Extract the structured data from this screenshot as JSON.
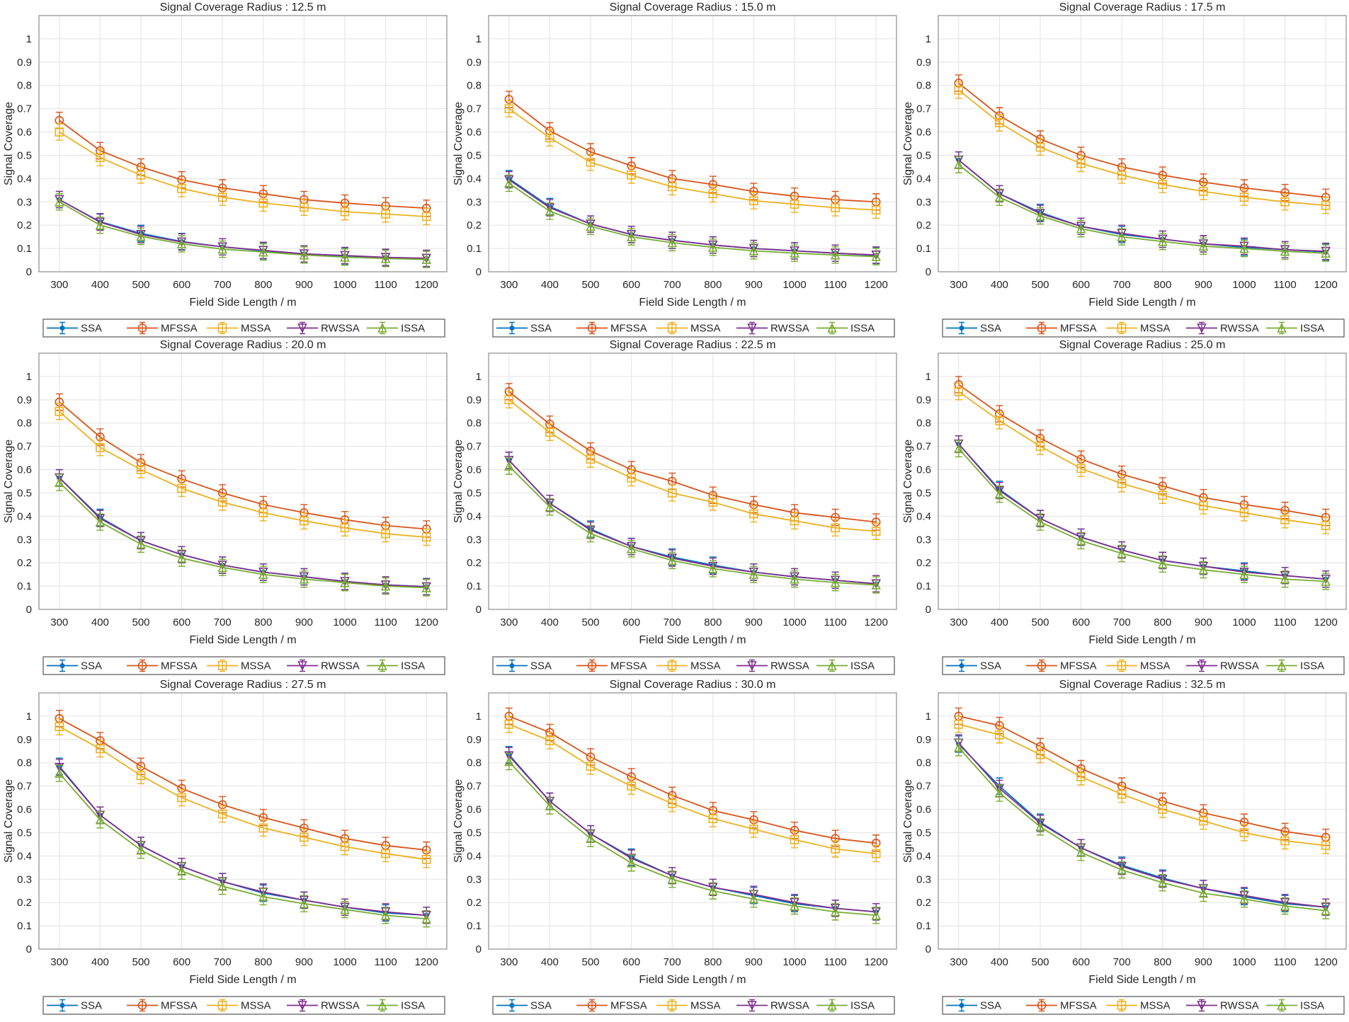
{
  "colors": {
    "SSA": "#0072BD",
    "MFSSA": "#D95319",
    "MSSA": "#EDB120",
    "RWSSA": "#7E2F8E",
    "ISSA": "#77AC30"
  },
  "markers": {
    "SSA": "asterisk",
    "MFSSA": "circle",
    "MSSA": "square",
    "RWSSA": "triangle-down",
    "ISSA": "triangle-up"
  },
  "chart_data": [
    {
      "type": "line",
      "title": "Signal Coverage Radius : 12.5 m",
      "xlabel": "Field Side Length / m",
      "ylabel": "Signal Coverage",
      "xlim": [
        250,
        1250
      ],
      "ylim": [
        0,
        1.1
      ],
      "grid": true,
      "legend": "bottom",
      "error_bars_approx": 0.035,
      "x": [
        300,
        400,
        500,
        600,
        700,
        800,
        900,
        1000,
        1100,
        1200
      ],
      "yticks": [
        "0",
        "0.1",
        "0.2",
        "0.3",
        "0.4",
        "0.5",
        "0.6",
        "0.7",
        "0.8",
        "0.9",
        "1"
      ],
      "series": [
        {
          "name": "SSA",
          "values": [
            0.31,
            0.215,
            0.165,
            0.13,
            0.107,
            0.09,
            0.077,
            0.068,
            0.062,
            0.057
          ]
        },
        {
          "name": "MFSSA",
          "values": [
            0.65,
            0.52,
            0.45,
            0.395,
            0.36,
            0.335,
            0.31,
            0.295,
            0.283,
            0.273
          ]
        },
        {
          "name": "MSSA",
          "values": [
            0.6,
            0.49,
            0.415,
            0.357,
            0.32,
            0.295,
            0.277,
            0.258,
            0.248,
            0.237
          ]
        },
        {
          "name": "RWSSA",
          "values": [
            0.31,
            0.213,
            0.16,
            0.128,
            0.107,
            0.092,
            0.077,
            0.07,
            0.062,
            0.058
          ]
        },
        {
          "name": "ISSA",
          "values": [
            0.3,
            0.2,
            0.152,
            0.12,
            0.097,
            0.085,
            0.072,
            0.063,
            0.057,
            0.053
          ]
        }
      ]
    },
    {
      "type": "line",
      "title": "Signal Coverage Radius : 15.0 m",
      "xlabel": "Field Side Length / m",
      "ylabel": "Signal Coverage",
      "xlim": [
        250,
        1250
      ],
      "ylim": [
        0,
        1.1
      ],
      "grid": true,
      "legend": "bottom",
      "error_bars_approx": 0.035,
      "x": [
        300,
        400,
        500,
        600,
        700,
        800,
        900,
        1000,
        1100,
        1200
      ],
      "yticks": [
        "0",
        "0.1",
        "0.2",
        "0.3",
        "0.4",
        "0.5",
        "0.6",
        "0.7",
        "0.8",
        "0.9",
        "1"
      ],
      "series": [
        {
          "name": "SSA",
          "values": [
            0.4,
            0.28,
            0.205,
            0.16,
            0.135,
            0.115,
            0.1,
            0.09,
            0.08,
            0.07
          ]
        },
        {
          "name": "MFSSA",
          "values": [
            0.74,
            0.605,
            0.515,
            0.455,
            0.4,
            0.375,
            0.345,
            0.325,
            0.31,
            0.3
          ]
        },
        {
          "name": "MSSA",
          "values": [
            0.7,
            0.575,
            0.47,
            0.415,
            0.365,
            0.335,
            0.305,
            0.29,
            0.275,
            0.265
          ]
        },
        {
          "name": "RWSSA",
          "values": [
            0.395,
            0.275,
            0.205,
            0.16,
            0.135,
            0.115,
            0.1,
            0.09,
            0.08,
            0.072
          ]
        },
        {
          "name": "ISSA",
          "values": [
            0.38,
            0.26,
            0.195,
            0.15,
            0.125,
            0.105,
            0.09,
            0.08,
            0.072,
            0.065
          ]
        }
      ]
    },
    {
      "type": "line",
      "title": "Signal Coverage Radius : 17.5 m",
      "xlabel": "Field Side Length / m",
      "ylabel": "Signal Coverage",
      "xlim": [
        250,
        1250
      ],
      "ylim": [
        0,
        1.1
      ],
      "grid": true,
      "legend": "bottom",
      "error_bars_approx": 0.035,
      "x": [
        300,
        400,
        500,
        600,
        700,
        800,
        900,
        1000,
        1100,
        1200
      ],
      "yticks": [
        "0",
        "0.1",
        "0.2",
        "0.3",
        "0.4",
        "0.5",
        "0.6",
        "0.7",
        "0.8",
        "0.9",
        "1"
      ],
      "series": [
        {
          "name": "SSA",
          "values": [
            0.48,
            0.335,
            0.255,
            0.195,
            0.16,
            0.14,
            0.12,
            0.105,
            0.095,
            0.085
          ]
        },
        {
          "name": "MFSSA",
          "values": [
            0.81,
            0.67,
            0.57,
            0.5,
            0.45,
            0.415,
            0.385,
            0.36,
            0.34,
            0.32
          ]
        },
        {
          "name": "MSSA",
          "values": [
            0.78,
            0.64,
            0.535,
            0.465,
            0.415,
            0.375,
            0.345,
            0.32,
            0.3,
            0.285
          ]
        },
        {
          "name": "RWSSA",
          "values": [
            0.48,
            0.335,
            0.25,
            0.195,
            0.165,
            0.14,
            0.12,
            0.11,
            0.095,
            0.088
          ]
        },
        {
          "name": "ISSA",
          "values": [
            0.46,
            0.32,
            0.24,
            0.185,
            0.15,
            0.13,
            0.11,
            0.1,
            0.088,
            0.08
          ]
        }
      ]
    },
    {
      "type": "line",
      "title": "Signal Coverage Radius : 20.0 m",
      "xlabel": "Field Side Length / m",
      "ylabel": "Signal Coverage",
      "xlim": [
        250,
        1250
      ],
      "ylim": [
        0,
        1.1
      ],
      "grid": true,
      "legend": "bottom",
      "error_bars_approx": 0.035,
      "x": [
        300,
        400,
        500,
        600,
        700,
        800,
        900,
        1000,
        1100,
        1200
      ],
      "yticks": [
        "0",
        "0.1",
        "0.2",
        "0.3",
        "0.4",
        "0.5",
        "0.6",
        "0.7",
        "0.8",
        "0.9",
        "1"
      ],
      "series": [
        {
          "name": "SSA",
          "values": [
            0.565,
            0.395,
            0.295,
            0.235,
            0.19,
            0.16,
            0.14,
            0.12,
            0.105,
            0.098
          ]
        },
        {
          "name": "MFSSA",
          "values": [
            0.89,
            0.74,
            0.63,
            0.56,
            0.5,
            0.45,
            0.415,
            0.385,
            0.36,
            0.345
          ]
        },
        {
          "name": "MSSA",
          "values": [
            0.85,
            0.695,
            0.6,
            0.52,
            0.46,
            0.415,
            0.38,
            0.35,
            0.325,
            0.31
          ]
        },
        {
          "name": "RWSSA",
          "values": [
            0.565,
            0.39,
            0.295,
            0.235,
            0.19,
            0.16,
            0.14,
            0.12,
            0.105,
            0.097
          ]
        },
        {
          "name": "ISSA",
          "values": [
            0.545,
            0.375,
            0.28,
            0.22,
            0.18,
            0.15,
            0.13,
            0.115,
            0.1,
            0.093
          ]
        }
      ]
    },
    {
      "type": "line",
      "title": "Signal Coverage Radius : 22.5 m",
      "xlabel": "Field Side Length / m",
      "ylabel": "Signal Coverage",
      "xlim": [
        250,
        1250
      ],
      "ylim": [
        0,
        1.1
      ],
      "grid": true,
      "legend": "bottom",
      "error_bars_approx": 0.035,
      "x": [
        300,
        400,
        500,
        600,
        700,
        800,
        900,
        1000,
        1100,
        1200
      ],
      "yticks": [
        "0",
        "0.1",
        "0.2",
        "0.3",
        "0.4",
        "0.5",
        "0.6",
        "0.7",
        "0.8",
        "0.9",
        "1"
      ],
      "series": [
        {
          "name": "SSA",
          "values": [
            0.64,
            0.455,
            0.345,
            0.27,
            0.225,
            0.19,
            0.16,
            0.14,
            0.125,
            0.11
          ]
        },
        {
          "name": "MFSSA",
          "values": [
            0.935,
            0.795,
            0.68,
            0.6,
            0.55,
            0.49,
            0.45,
            0.415,
            0.395,
            0.375
          ]
        },
        {
          "name": "MSSA",
          "values": [
            0.9,
            0.76,
            0.645,
            0.565,
            0.5,
            0.46,
            0.41,
            0.38,
            0.35,
            0.335
          ]
        },
        {
          "name": "RWSSA",
          "values": [
            0.64,
            0.455,
            0.34,
            0.27,
            0.22,
            0.185,
            0.16,
            0.14,
            0.125,
            0.11
          ]
        },
        {
          "name": "ISSA",
          "values": [
            0.615,
            0.44,
            0.325,
            0.26,
            0.21,
            0.175,
            0.15,
            0.13,
            0.115,
            0.105
          ]
        }
      ]
    },
    {
      "type": "line",
      "title": "Signal Coverage Radius : 25.0 m",
      "xlabel": "Field Side Length / m",
      "ylabel": "Signal Coverage",
      "xlim": [
        250,
        1250
      ],
      "ylim": [
        0,
        1.1
      ],
      "grid": true,
      "legend": "bottom",
      "error_bars_approx": 0.035,
      "x": [
        300,
        400,
        500,
        600,
        700,
        800,
        900,
        1000,
        1100,
        1200
      ],
      "yticks": [
        "0",
        "0.1",
        "0.2",
        "0.3",
        "0.4",
        "0.5",
        "0.6",
        "0.7",
        "0.8",
        "0.9",
        "1"
      ],
      "series": [
        {
          "name": "SSA",
          "values": [
            0.71,
            0.515,
            0.39,
            0.31,
            0.255,
            0.21,
            0.185,
            0.165,
            0.145,
            0.13
          ]
        },
        {
          "name": "MFSSA",
          "values": [
            0.965,
            0.84,
            0.735,
            0.645,
            0.58,
            0.53,
            0.48,
            0.45,
            0.425,
            0.395
          ]
        },
        {
          "name": "MSSA",
          "values": [
            0.935,
            0.81,
            0.7,
            0.605,
            0.54,
            0.49,
            0.445,
            0.415,
            0.385,
            0.36
          ]
        },
        {
          "name": "RWSSA",
          "values": [
            0.71,
            0.51,
            0.39,
            0.31,
            0.255,
            0.21,
            0.185,
            0.16,
            0.145,
            0.13
          ]
        },
        {
          "name": "ISSA",
          "values": [
            0.69,
            0.495,
            0.375,
            0.295,
            0.24,
            0.195,
            0.17,
            0.15,
            0.13,
            0.12
          ]
        }
      ]
    },
    {
      "type": "line",
      "title": "Signal Coverage Radius : 27.5 m",
      "xlabel": "Field Side Length / m",
      "ylabel": "Signal Coverage",
      "xlim": [
        250,
        1250
      ],
      "ylim": [
        0,
        1.1
      ],
      "grid": true,
      "legend": "bottom",
      "error_bars_approx": 0.035,
      "x": [
        300,
        400,
        500,
        600,
        700,
        800,
        900,
        1000,
        1100,
        1200
      ],
      "yticks": [
        "0",
        "0.1",
        "0.2",
        "0.3",
        "0.4",
        "0.5",
        "0.6",
        "0.7",
        "0.8",
        "0.9",
        "1"
      ],
      "series": [
        {
          "name": "SSA",
          "values": [
            0.785,
            0.575,
            0.445,
            0.355,
            0.29,
            0.24,
            0.21,
            0.18,
            0.155,
            0.145
          ]
        },
        {
          "name": "MFSSA",
          "values": [
            0.99,
            0.895,
            0.785,
            0.69,
            0.62,
            0.565,
            0.52,
            0.475,
            0.445,
            0.425
          ]
        },
        {
          "name": "MSSA",
          "values": [
            0.955,
            0.86,
            0.745,
            0.65,
            0.58,
            0.52,
            0.48,
            0.44,
            0.41,
            0.385
          ]
        },
        {
          "name": "RWSSA",
          "values": [
            0.78,
            0.575,
            0.445,
            0.355,
            0.29,
            0.245,
            0.21,
            0.18,
            0.16,
            0.145
          ]
        },
        {
          "name": "ISSA",
          "values": [
            0.755,
            0.555,
            0.425,
            0.335,
            0.27,
            0.225,
            0.195,
            0.17,
            0.145,
            0.13
          ]
        }
      ]
    },
    {
      "type": "line",
      "title": "Signal Coverage Radius : 30.0 m",
      "xlabel": "Field Side Length / m",
      "ylabel": "Signal Coverage",
      "xlim": [
        250,
        1250
      ],
      "ylim": [
        0,
        1.1
      ],
      "grid": true,
      "legend": "bottom",
      "error_bars_approx": 0.035,
      "x": [
        300,
        400,
        500,
        600,
        700,
        800,
        900,
        1000,
        1100,
        1200
      ],
      "yticks": [
        "0",
        "0.1",
        "0.2",
        "0.3",
        "0.4",
        "0.5",
        "0.6",
        "0.7",
        "0.8",
        "0.9",
        "1"
      ],
      "series": [
        {
          "name": "SSA",
          "values": [
            0.835,
            0.635,
            0.495,
            0.395,
            0.315,
            0.265,
            0.23,
            0.195,
            0.175,
            0.16
          ]
        },
        {
          "name": "MFSSA",
          "values": [
            1.0,
            0.93,
            0.825,
            0.74,
            0.66,
            0.595,
            0.555,
            0.51,
            0.475,
            0.455
          ]
        },
        {
          "name": "MSSA",
          "values": [
            0.965,
            0.895,
            0.785,
            0.7,
            0.625,
            0.56,
            0.515,
            0.47,
            0.43,
            0.41
          ]
        },
        {
          "name": "RWSSA",
          "values": [
            0.83,
            0.635,
            0.495,
            0.39,
            0.315,
            0.265,
            0.235,
            0.2,
            0.175,
            0.16
          ]
        },
        {
          "name": "ISSA",
          "values": [
            0.805,
            0.615,
            0.475,
            0.37,
            0.3,
            0.25,
            0.215,
            0.185,
            0.16,
            0.145
          ]
        }
      ]
    },
    {
      "type": "line",
      "title": "Signal Coverage Radius : 32.5 m",
      "xlabel": "Field Side Length / m",
      "ylabel": "Signal Coverage",
      "xlim": [
        250,
        1250
      ],
      "ylim": [
        0,
        1.1
      ],
      "grid": true,
      "legend": "bottom",
      "error_bars_approx": 0.035,
      "x": [
        300,
        400,
        500,
        600,
        700,
        800,
        900,
        1000,
        1100,
        1200
      ],
      "yticks": [
        "0",
        "0.1",
        "0.2",
        "0.3",
        "0.4",
        "0.5",
        "0.6",
        "0.7",
        "0.8",
        "0.9",
        "1"
      ],
      "series": [
        {
          "name": "SSA",
          "values": [
            0.88,
            0.7,
            0.545,
            0.435,
            0.36,
            0.305,
            0.26,
            0.225,
            0.195,
            0.18
          ]
        },
        {
          "name": "MFSSA",
          "values": [
            1.0,
            0.96,
            0.87,
            0.775,
            0.7,
            0.635,
            0.585,
            0.545,
            0.505,
            0.48
          ]
        },
        {
          "name": "MSSA",
          "values": [
            0.965,
            0.92,
            0.835,
            0.74,
            0.665,
            0.6,
            0.55,
            0.5,
            0.465,
            0.445
          ]
        },
        {
          "name": "RWSSA",
          "values": [
            0.885,
            0.69,
            0.54,
            0.435,
            0.355,
            0.3,
            0.26,
            0.23,
            0.2,
            0.18
          ]
        },
        {
          "name": "ISSA",
          "values": [
            0.865,
            0.67,
            0.525,
            0.415,
            0.34,
            0.285,
            0.24,
            0.215,
            0.185,
            0.165
          ]
        }
      ]
    }
  ]
}
